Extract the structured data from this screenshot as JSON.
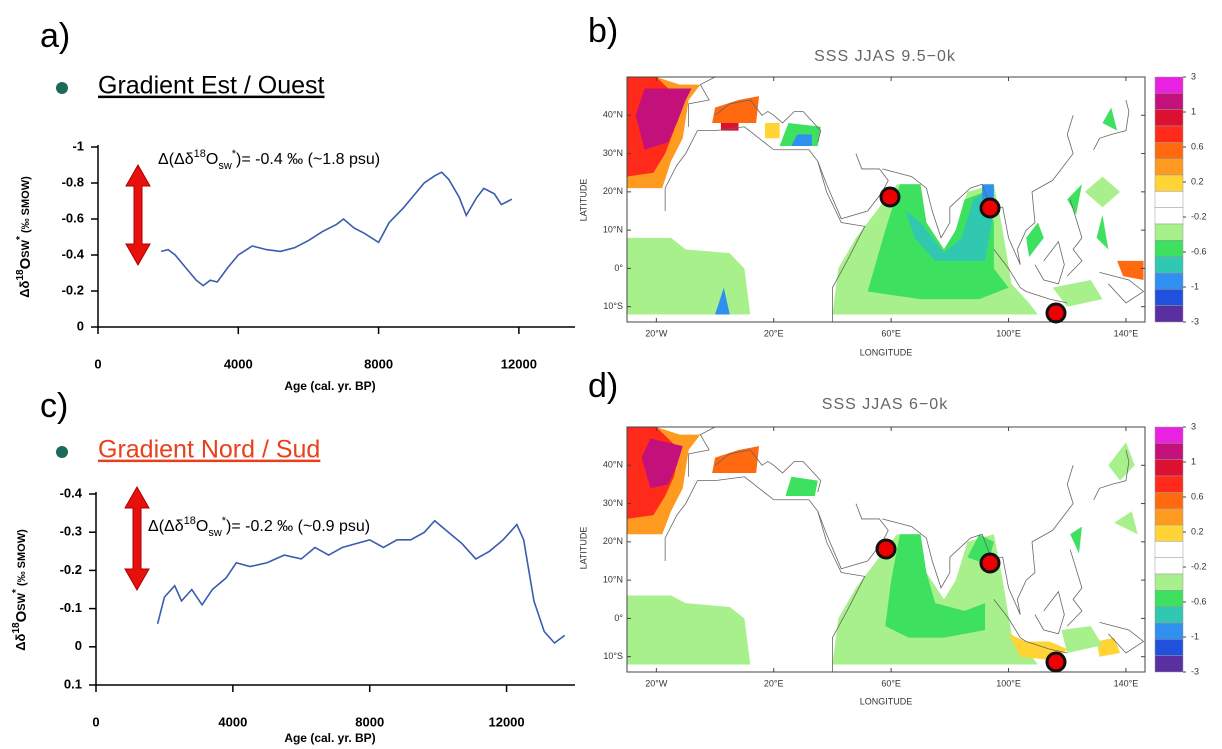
{
  "chart_data": [
    {
      "type": "line",
      "panel_label": "a)",
      "heading": "Gradient Est / Ouest",
      "ylabel": [
        "Δδ",
        "18",
        "O",
        "SW",
        "*",
        " (‰ SMOW)"
      ],
      "annotation": [
        "Δ(Δδ",
        "18",
        "O",
        "sw",
        "*",
        ")= -0.4 ‰ (~1.8 psu)"
      ],
      "xlabel": "Age (cal. yr. BP)",
      "x": [
        1800,
        2000,
        2200,
        2500,
        2800,
        3000,
        3200,
        3400,
        3700,
        4000,
        4400,
        4800,
        5200,
        5600,
        6000,
        6400,
        6800,
        7000,
        7300,
        7600,
        8000,
        8300,
        8700,
        9000,
        9300,
        9600,
        9800,
        10000,
        10300,
        10500,
        10800,
        11000,
        11300,
        11500,
        11800
      ],
      "values": [
        -0.42,
        -0.43,
        -0.4,
        -0.33,
        -0.26,
        -0.23,
        -0.26,
        -0.25,
        -0.33,
        -0.4,
        -0.45,
        -0.43,
        -0.42,
        -0.44,
        -0.48,
        -0.53,
        -0.57,
        -0.6,
        -0.55,
        -0.52,
        -0.47,
        -0.58,
        -0.66,
        -0.73,
        -0.8,
        -0.84,
        -0.86,
        -0.82,
        -0.72,
        -0.62,
        -0.72,
        -0.77,
        -0.74,
        -0.68,
        -0.71
      ],
      "color": "#3a5bb0",
      "xlim": [
        0,
        13600
      ],
      "xticks": [
        0,
        4000,
        8000,
        12000
      ],
      "ylim": [
        0,
        -1
      ],
      "yticks": [
        -1,
        -0.8,
        -0.6,
        -0.4,
        -0.2,
        0
      ]
    },
    {
      "type": "map",
      "panel_label": "b)",
      "title": "SSS JJAS 9.5−0k",
      "xlabel": "LONGITUDE",
      "ylabel": "LATITUDE",
      "xlim": [
        -30,
        146.5
      ],
      "ylim": [
        -14,
        50
      ],
      "xticks": [
        {
          "value": -20,
          "label": "20°W"
        },
        {
          "value": 20,
          "label": "20°E"
        },
        {
          "value": 60,
          "label": "60°E"
        },
        {
          "value": 100,
          "label": "100°E"
        },
        {
          "value": 140,
          "label": "140°E"
        }
      ],
      "yticks": [
        {
          "value": -10,
          "label": "10°S"
        },
        {
          "value": 0,
          "label": "0°"
        },
        {
          "value": 10,
          "label": "10°N"
        },
        {
          "value": 20,
          "label": "20°N"
        },
        {
          "value": 30,
          "label": "30°N"
        },
        {
          "value": 40,
          "label": "40°N"
        }
      ],
      "colorbar_ticks": [
        3,
        1,
        0.6,
        0.2,
        -0.2,
        -0.6,
        -1,
        -3
      ],
      "colorbar_colors": [
        "#e822e0",
        "#c4107a",
        "#dc1030",
        "#ff2a1a",
        "#ff6a10",
        "#ff9a20",
        "#ffd434",
        "#ffffff",
        "#ffffff",
        "#a8f08c",
        "#3ee060",
        "#30c8b0",
        "#2f90f0",
        "#2050dc",
        "#5a2fa0"
      ]
    },
    {
      "type": "line",
      "panel_label": "c)",
      "heading": "Gradient Nord / Sud",
      "ylabel": [
        "Δδ",
        "18",
        "O",
        "SW",
        "*",
        " (‰ SMOW)"
      ],
      "annotation": [
        "Δ(Δδ",
        "18",
        "O",
        "sw",
        "*",
        ")= -0.2 ‰ (~0.9 psu)"
      ],
      "xlabel": "Age (cal. yr. BP)",
      "x": [
        1800,
        2000,
        2300,
        2500,
        2800,
        3100,
        3400,
        3800,
        4100,
        4500,
        5000,
        5500,
        6000,
        6400,
        6800,
        7200,
        7600,
        8000,
        8400,
        8800,
        9200,
        9600,
        9900,
        10300,
        10700,
        11100,
        11500,
        11900,
        12300,
        12500,
        12800,
        13100,
        13400,
        13700
      ],
      "values": [
        -0.06,
        -0.13,
        -0.16,
        -0.12,
        -0.15,
        -0.11,
        -0.15,
        -0.18,
        -0.22,
        -0.21,
        -0.22,
        -0.24,
        -0.23,
        -0.26,
        -0.24,
        -0.26,
        -0.27,
        -0.28,
        -0.26,
        -0.28,
        -0.28,
        -0.3,
        -0.33,
        -0.3,
        -0.27,
        -0.23,
        -0.25,
        -0.28,
        -0.32,
        -0.28,
        -0.12,
        -0.04,
        -0.01,
        -0.03
      ],
      "color": "#3a5bb0",
      "xlim": [
        0,
        14000
      ],
      "xticks": [
        0,
        4000,
        8000,
        12000
      ],
      "ylim": [
        0.1,
        -0.4
      ],
      "yticks": [
        -0.4,
        -0.3,
        -0.2,
        -0.1,
        0,
        0.1
      ]
    },
    {
      "type": "map",
      "panel_label": "d)",
      "title": "SSS JJAS 6−0k",
      "xlabel": "LONGITUDE",
      "ylabel": "LATITUDE",
      "xlim": [
        -30,
        146.5
      ],
      "ylim": [
        -14,
        50
      ],
      "xticks": [
        {
          "value": -20,
          "label": "20°W"
        },
        {
          "value": 20,
          "label": "20°E"
        },
        {
          "value": 60,
          "label": "60°E"
        },
        {
          "value": 100,
          "label": "100°E"
        },
        {
          "value": 140,
          "label": "140°E"
        }
      ],
      "yticks": [
        {
          "value": -10,
          "label": "10°S"
        },
        {
          "value": 0,
          "label": "0°"
        },
        {
          "value": 10,
          "label": "10°N"
        },
        {
          "value": 20,
          "label": "20°N"
        },
        {
          "value": 30,
          "label": "30°N"
        },
        {
          "value": 40,
          "label": "40°N"
        }
      ],
      "colorbar_ticks": [
        3,
        1,
        0.6,
        0.2,
        -0.2,
        -0.6,
        -1,
        -3
      ],
      "colorbar_colors": [
        "#e822e0",
        "#c4107a",
        "#dc1030",
        "#ff2a1a",
        "#ff6a10",
        "#ff9a20",
        "#ffd434",
        "#ffffff",
        "#ffffff",
        "#a8f08c",
        "#3ee060",
        "#30c8b0",
        "#2f90f0",
        "#2050dc",
        "#5a2fa0"
      ]
    }
  ]
}
